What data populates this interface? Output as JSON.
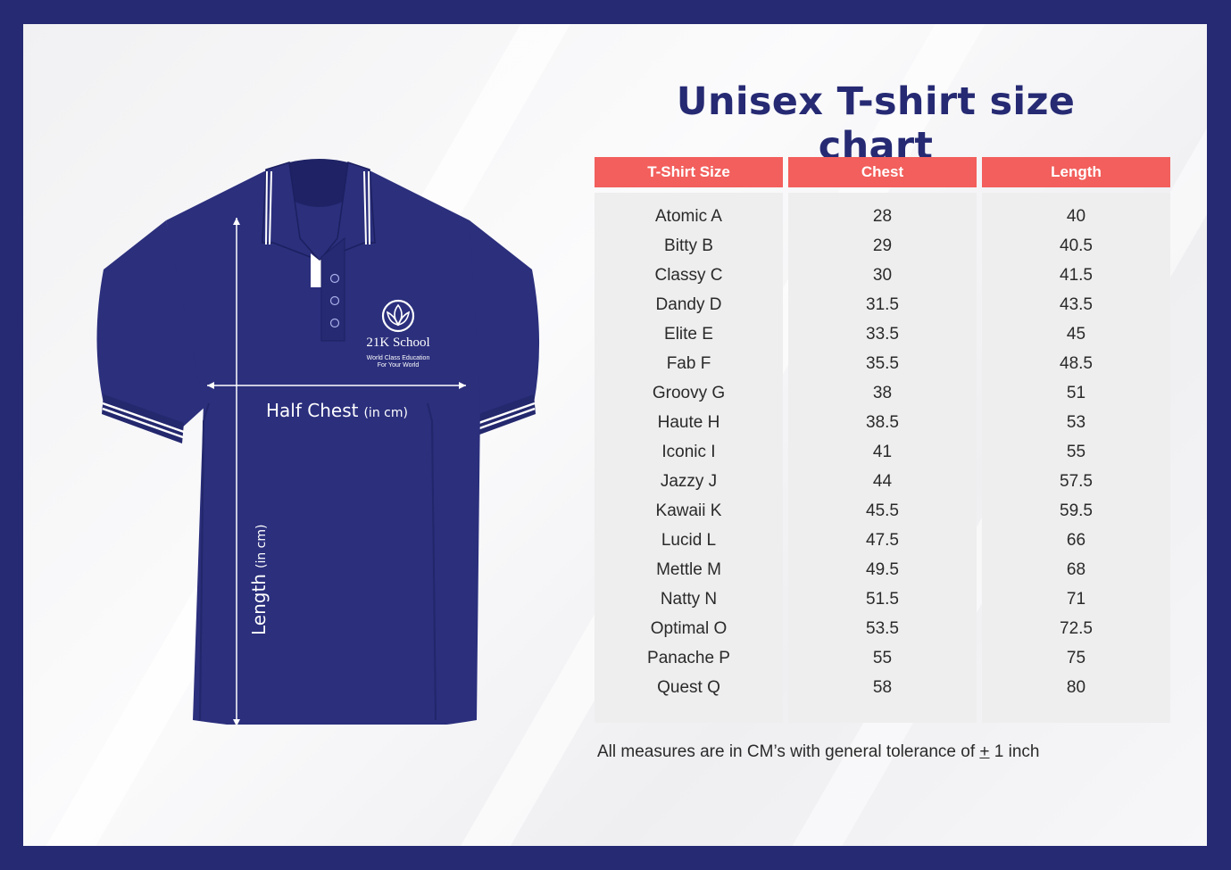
{
  "title": "Unisex T-shirt size chart",
  "logo": {
    "name": "21K School",
    "tagline_1": "World Class Education",
    "tagline_2": "For Your World"
  },
  "shirt": {
    "color": "#2b2f7c",
    "half_chest_label": "Half Chest",
    "half_chest_unit": "(in cm)",
    "length_label": "Length",
    "length_unit": "(in cm)"
  },
  "table": {
    "header_color": "#f25f5c",
    "headers": [
      "T-Shirt Size",
      "Chest",
      "Length"
    ],
    "rows": [
      [
        "Atomic A",
        "28",
        "40"
      ],
      [
        "Bitty B",
        "29",
        "40.5"
      ],
      [
        "Classy C",
        "30",
        "41.5"
      ],
      [
        "Dandy D",
        "31.5",
        "43.5"
      ],
      [
        "Elite E",
        "33.5",
        "45"
      ],
      [
        "Fab F",
        "35.5",
        "48.5"
      ],
      [
        "Groovy G",
        "38",
        "51"
      ],
      [
        "Haute H",
        "38.5",
        "53"
      ],
      [
        "Iconic I",
        "41",
        "55"
      ],
      [
        "Jazzy J",
        "44",
        "57.5"
      ],
      [
        "Kawaii K",
        "45.5",
        "59.5"
      ],
      [
        "Lucid L",
        "47.5",
        "66"
      ],
      [
        "Mettle M",
        "49.5",
        "68"
      ],
      [
        "Natty N",
        "51.5",
        "71"
      ],
      [
        "Optimal O",
        "53.5",
        "72.5"
      ],
      [
        "Panache P",
        "55",
        "75"
      ],
      [
        "Quest Q",
        "58",
        "80"
      ]
    ]
  },
  "note": {
    "prefix": "All measures are in CM’s with general tolerance of ",
    "symbol": "+",
    "suffix": " 1 inch"
  }
}
